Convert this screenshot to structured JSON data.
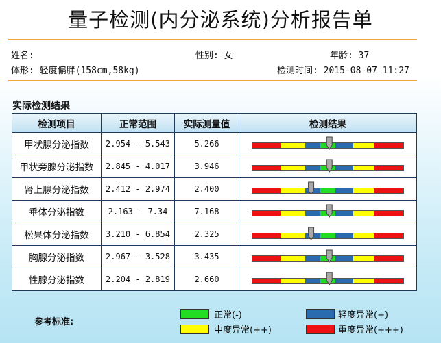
{
  "report": {
    "title": "量子检测(内分泌系统)分析报告单",
    "name_label": "姓名:",
    "gender": "性别: 女",
    "age": "年龄: 37",
    "body_type": "体形: 轻度偏胖(158cm,58kg)",
    "test_time": "检测时间: 2015-08-07 11:27"
  },
  "section_title": "实际检测结果",
  "table": {
    "headers": [
      "检测项目",
      "正常范围",
      "实际测量值",
      "检测结果"
    ],
    "rows": [
      {
        "item": "甲状腺分泌指数",
        "range": "2.954 - 5.543",
        "value": "5.266",
        "marker": 0.51
      },
      {
        "item": "甲状旁腺分泌指数",
        "range": "2.845 - 4.017",
        "value": "3.946",
        "marker": 0.51
      },
      {
        "item": "肾上腺分泌指数",
        "range": "2.412 - 2.974",
        "value": "2.400",
        "marker": 0.39
      },
      {
        "item": "垂体分泌指数",
        "range": "2.163 - 7.34",
        "value": "7.168",
        "marker": 0.51
      },
      {
        "item": "松果体分泌指数",
        "range": "3.210 - 6.854",
        "value": "2.325",
        "marker": 0.39
      },
      {
        "item": "胸腺分泌指数",
        "range": "2.967 - 3.528",
        "value": "3.435",
        "marker": 0.51
      },
      {
        "item": "性腺分泌指数",
        "range": "2.204 - 2.819",
        "value": "2.660",
        "marker": 0.51
      }
    ]
  },
  "gauge_colors": {
    "severe": "#ee1111",
    "moderate": "#ffff00",
    "mild": "#2a6bb0",
    "normal": "#22dd22"
  },
  "legend": {
    "title": "参考标准:",
    "normal": "正常(-)",
    "mild": "轻度异常(+)",
    "moderate": "中度异常(++)",
    "severe": "重度异常(+++)"
  }
}
